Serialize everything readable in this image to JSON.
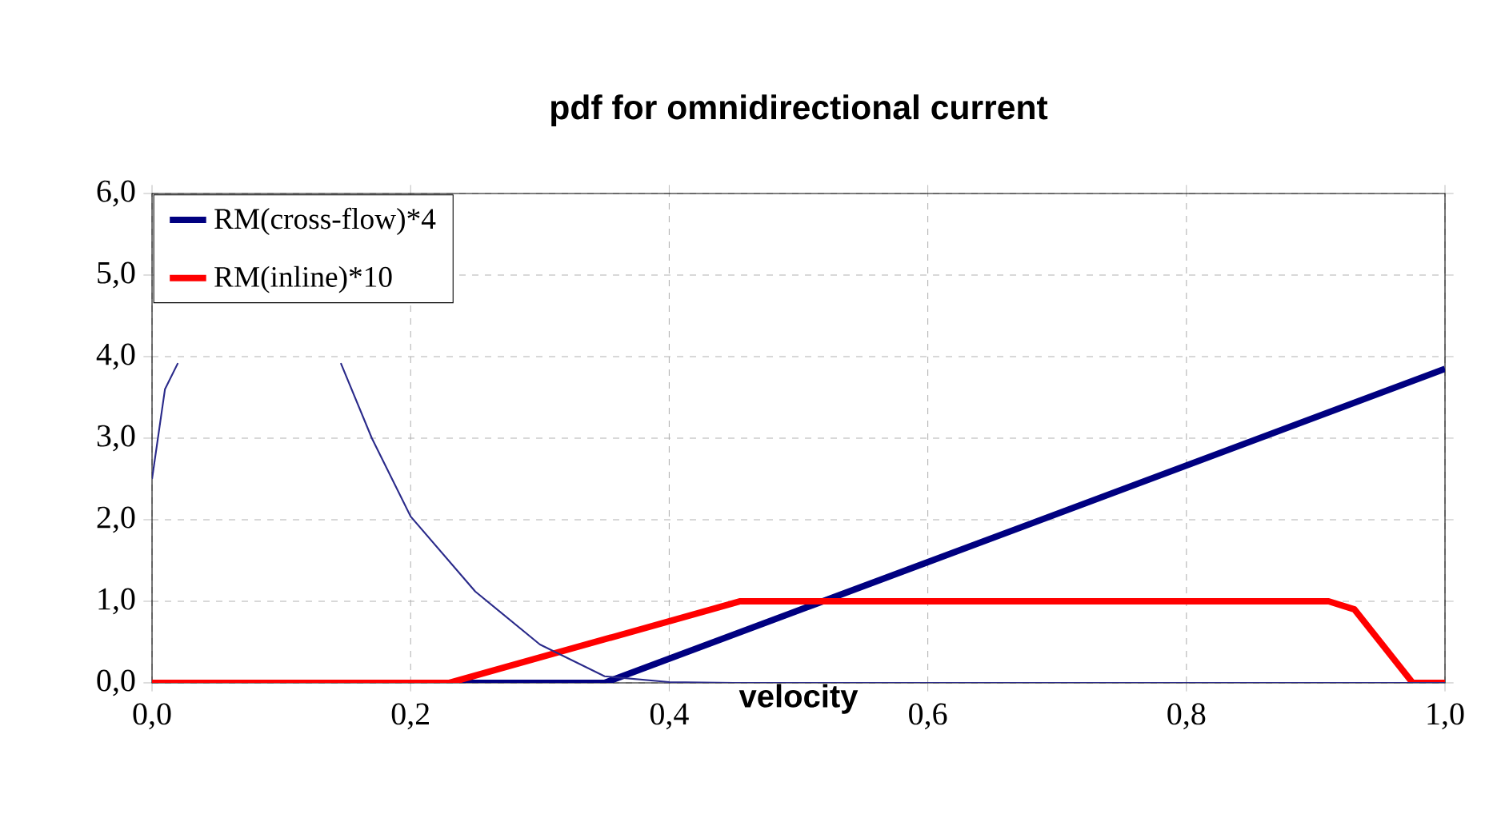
{
  "chart_data": {
    "type": "line",
    "title": "pdf for omnidirectional  current",
    "xlabel": "velocity",
    "series": [
      {
        "name": "RM(cross-flow)*4",
        "color": "#000080",
        "x": [
          0,
          0.35,
          1.0
        ],
        "values": [
          0,
          0,
          3.85
        ]
      },
      {
        "name": "RM(inline)*10",
        "color": "#ff0000",
        "x": [
          0,
          0.23,
          0.455,
          0.91,
          0.93,
          0.975,
          1.0
        ],
        "values": [
          0,
          0,
          1.0,
          1.0,
          0.9,
          0,
          0
        ]
      },
      {
        "color": "#2a2a8a",
        "x": [
          0,
          0.01,
          0.02,
          0.03,
          0.13,
          0.146,
          0.17,
          0.2,
          0.25,
          0.3,
          0.35,
          0.4,
          0.45,
          1.0
        ],
        "values": [
          2.5,
          3.6,
          3.92,
          null,
          null,
          3.92,
          3.0,
          2.04,
          1.12,
          0.47,
          0.08,
          0.01,
          0,
          0
        ]
      }
    ],
    "xlim": [
      0,
      1
    ],
    "ylim": [
      0,
      6
    ],
    "xticks": [
      {
        "value": 0,
        "label": "0,0"
      },
      {
        "value": 0.2,
        "label": "0,2"
      },
      {
        "value": 0.4,
        "label": "0,4"
      },
      {
        "value": 0.6,
        "label": "0,6"
      },
      {
        "value": 0.8,
        "label": "0,8"
      },
      {
        "value": 1,
        "label": "1,0"
      }
    ],
    "yticks": [
      {
        "value": 0,
        "label": "0,0"
      },
      {
        "value": 1,
        "label": "1,0"
      },
      {
        "value": 2,
        "label": "2,0"
      },
      {
        "value": 3,
        "label": "3,0"
      },
      {
        "value": 4,
        "label": "4,0"
      },
      {
        "value": 5,
        "label": "5,0"
      },
      {
        "value": 6,
        "label": "6,0"
      }
    ],
    "grid": true,
    "legend": "top left",
    "line_style": "solid"
  }
}
